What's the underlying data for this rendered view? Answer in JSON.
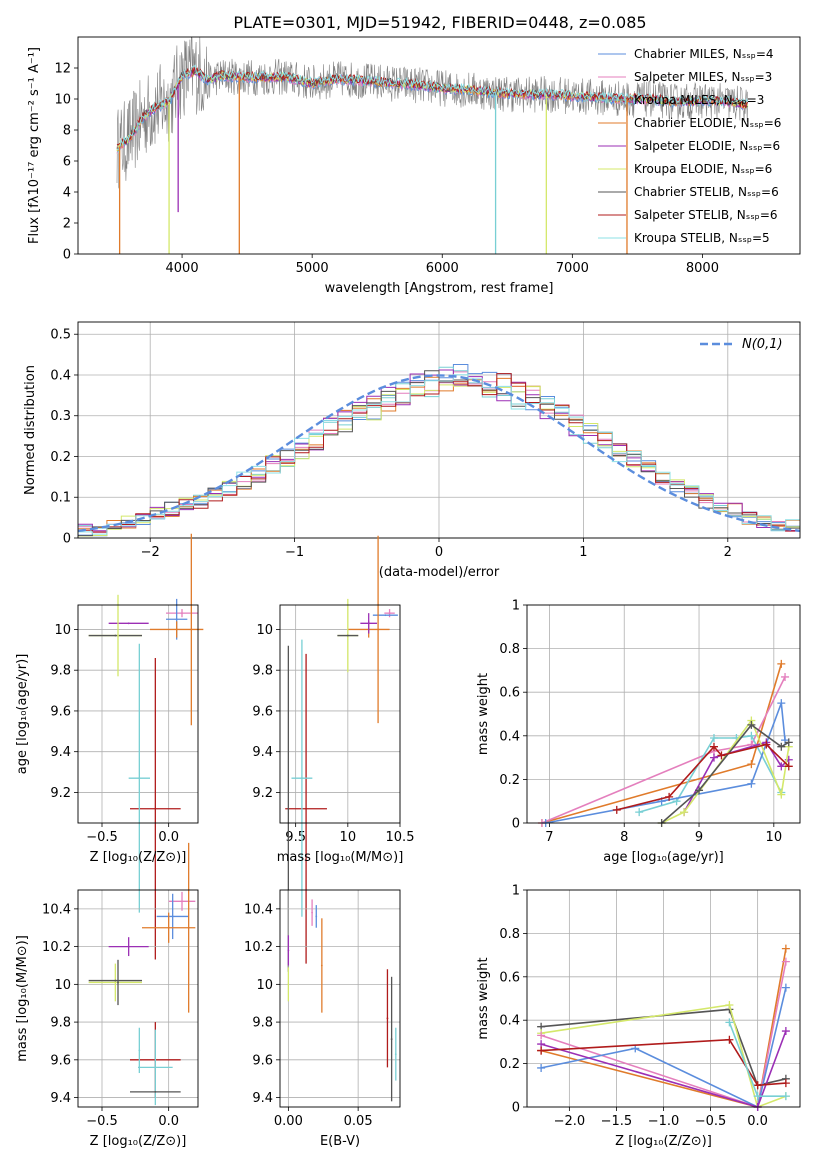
{
  "figure": {
    "title": "PLATE=0301, MJD=51942, FIBERID=0448, z=0.085"
  },
  "colors": {
    "chabrier_miles": "#5b8ddd",
    "salpeter_miles": "#e47fbd",
    "kroupa_miles": "#78cfd4",
    "chabrier_elodie": "#e07b2b",
    "salpeter_elodie": "#9b2fb5",
    "kroupa_elodie": "#d4e86a",
    "chabrier_stelib": "#555555",
    "salpeter_stelib": "#b01b1b",
    "kroupa_stelib": "#8ee0e6",
    "gauss": "#5b8ddd"
  },
  "chart_data": [
    {
      "id": "spectrum",
      "type": "line",
      "title": "PLATE=0301, MJD=51942, FIBERID=0448, z=0.085",
      "xlabel": "wavelength [Angstrom, rest frame]",
      "ylabel": "Flux [fλ10⁻¹⁷ erg cm⁻² s⁻¹ A⁻¹]",
      "xlim": [
        3200,
        8750
      ],
      "ylim": [
        0,
        14
      ],
      "xticks": [
        4000,
        5000,
        6000,
        7000,
        8000
      ],
      "yticks": [
        0,
        2,
        4,
        6,
        8,
        10,
        12
      ],
      "grid": false,
      "legend_position": "upper right",
      "continuum": {
        "x": [
          3500,
          3600,
          3700,
          3800,
          3900,
          4000,
          4100,
          4200,
          4300,
          4500,
          4800,
          5000,
          5200,
          5500,
          5800,
          6000,
          6200,
          6400,
          6600,
          6800,
          7000,
          7200,
          7400,
          7600,
          7800,
          8000,
          8200,
          8350
        ],
        "y": [
          6.8,
          7.5,
          8.8,
          9.5,
          9.8,
          11.5,
          11.8,
          11.2,
          11.5,
          11.4,
          11.4,
          11.0,
          11.3,
          11.1,
          10.9,
          10.7,
          10.6,
          10.4,
          10.3,
          10.3,
          10.2,
          10.1,
          10.0,
          10.0,
          9.8,
          9.9,
          9.8,
          9.6
        ]
      },
      "series": [
        {
          "name": "Chabrier MILES, Nₛₛₚ=4",
          "color": "#5b8ddd"
        },
        {
          "name": "Salpeter MILES, Nₛₛₚ=3",
          "color": "#e47fbd"
        },
        {
          "name": "Kroupa MILES, Nₛₛₚ=3",
          "color": "#78cfd4"
        },
        {
          "name": "Chabrier ELODIE, Nₛₛₚ=6",
          "color": "#e07b2b"
        },
        {
          "name": "Salpeter ELODIE, Nₛₛₚ=6",
          "color": "#9b2fb5"
        },
        {
          "name": "Kroupa ELODIE, Nₛₛₚ=6",
          "color": "#d4e86a"
        },
        {
          "name": "Chabrier STELIB, Nₛₛₚ=6",
          "color": "#555555"
        },
        {
          "name": "Salpeter STELIB, Nₛₛₚ=6",
          "color": "#b01b1b"
        },
        {
          "name": "Kroupa STELIB, Nₛₛₚ=5",
          "color": "#8ee0e6"
        }
      ],
      "spikes": [
        {
          "x": 3520,
          "y": 0,
          "color": "#e07b2b"
        },
        {
          "x": 3900,
          "y": 0,
          "color": "#d4e86a"
        },
        {
          "x": 4440,
          "y": 0,
          "color": "#e07b2b"
        },
        {
          "x": 6410,
          "y": 0,
          "color": "#78cfd4"
        },
        {
          "x": 6800,
          "y": 0,
          "color": "#d4e86a"
        },
        {
          "x": 7420,
          "y": 0,
          "color": "#e07b2b"
        },
        {
          "x": 3970,
          "y": 2.7,
          "color": "#9b2fb5"
        }
      ]
    },
    {
      "id": "residuals",
      "type": "histogram",
      "xlabel": "(data-model)/error",
      "ylabel": "Normed distribution",
      "xlim": [
        -2.5,
        2.5
      ],
      "ylim": [
        0,
        0.53
      ],
      "xticks": [
        -2,
        -1,
        0,
        1,
        2
      ],
      "yticks": [
        0.0,
        0.1,
        0.2,
        0.3,
        0.4,
        0.5
      ],
      "grid": true,
      "legend": "N(0,1)",
      "legend_position": "upper right",
      "bin_width": 0.1,
      "bin_start": -2.5,
      "envelope": [
        0.02,
        0.02,
        0.03,
        0.04,
        0.05,
        0.06,
        0.07,
        0.08,
        0.09,
        0.11,
        0.12,
        0.14,
        0.16,
        0.18,
        0.2,
        0.22,
        0.24,
        0.27,
        0.29,
        0.31,
        0.32,
        0.34,
        0.36,
        0.37,
        0.38,
        0.39,
        0.4,
        0.39,
        0.38,
        0.37,
        0.35,
        0.34,
        0.32,
        0.3,
        0.28,
        0.26,
        0.24,
        0.21,
        0.19,
        0.17,
        0.15,
        0.13,
        0.11,
        0.09,
        0.08,
        0.07,
        0.05,
        0.04,
        0.03,
        0.03
      ]
    },
    {
      "id": "age_vs_Z",
      "type": "errorbar",
      "xlabel": "Z [log₁₀(Z/Z⊙)]",
      "ylabel": "age  [log₁₀(age/yr)]",
      "xlim": [
        -0.68,
        0.22
      ],
      "ylim": [
        9.05,
        10.12
      ],
      "xticks": [
        -0.5,
        0.0
      ],
      "xticklabels": [
        "−0.5",
        "0.0"
      ],
      "yticks": [
        9.2,
        9.4,
        9.6,
        9.8,
        10.0
      ],
      "grid": true,
      "points": [
        {
          "x": 0.1,
          "y": 10.08,
          "xerr": 0.12,
          "yerr": 0.02,
          "color": "#e47fbd"
        },
        {
          "x": 0.06,
          "y": 10.05,
          "xerr": 0.08,
          "yerr": 0.1,
          "color": "#5b8ddd"
        },
        {
          "x": 0.06,
          "y": 10.0,
          "xerr": 0.2,
          "yerr": 0.04,
          "color": "#e07b2b"
        },
        {
          "x": -0.3,
          "y": 10.03,
          "xerr": 0.15,
          "yerr": 0.0,
          "color": "#9b2fb5"
        },
        {
          "x": -0.4,
          "y": 9.97,
          "xerr": 0.2,
          "yerr": 0.0,
          "color": "#d4e86a"
        },
        {
          "x": -0.4,
          "y": 9.97,
          "xerr": 0.2,
          "yerr": 0.0,
          "color": "#555555"
        },
        {
          "x": -0.1,
          "y": 9.12,
          "xerr": 0.19,
          "yerr": 0.74,
          "color": "#b01b1b"
        },
        {
          "x": -0.22,
          "y": 9.27,
          "xerr": 0.08,
          "yerr": 0.66,
          "color": "#78cfd4"
        },
        {
          "x": 0.17,
          "y": 10.0,
          "xerr": 0.0,
          "yerr": 0.47,
          "color": "#e07b2b"
        },
        {
          "x": -0.38,
          "y": 9.97,
          "xerr": 0.0,
          "yerr": 0.2,
          "color": "#d4e86a"
        }
      ]
    },
    {
      "id": "age_vs_mass",
      "type": "errorbar",
      "xlabel": "mass [log₁₀(M/M⊙)]",
      "ylabel": "",
      "xlim": [
        9.35,
        10.5
      ],
      "ylim": [
        9.05,
        10.12
      ],
      "xticks": [
        9.5,
        10.0,
        10.5
      ],
      "yticks": [
        9.2,
        9.4,
        9.6,
        9.8,
        10.0
      ],
      "grid": true,
      "points": [
        {
          "x": 10.4,
          "y": 10.08,
          "xerr": 0.05,
          "yerr": 0.02,
          "color": "#e47fbd"
        },
        {
          "x": 10.36,
          "y": 10.07,
          "xerr": 0.12,
          "yerr": 0.0,
          "color": "#5b8ddd"
        },
        {
          "x": 10.2,
          "y": 10.0,
          "xerr": 0.2,
          "yerr": 0.04,
          "color": "#e07b2b"
        },
        {
          "x": 10.2,
          "y": 10.03,
          "xerr": 0.08,
          "yerr": 0.05,
          "color": "#9b2fb5"
        },
        {
          "x": 10.0,
          "y": 9.97,
          "xerr": 0.1,
          "yerr": 0.18,
          "color": "#d4e86a"
        },
        {
          "x": 10.0,
          "y": 9.97,
          "xerr": 0.1,
          "yerr": 0.0,
          "color": "#555555"
        },
        {
          "x": 9.6,
          "y": 9.12,
          "xerr": 0.2,
          "yerr": 0.76,
          "color": "#b01b1b"
        },
        {
          "x": 9.56,
          "y": 9.27,
          "xerr": 0.1,
          "yerr": 0.68,
          "color": "#78cfd4"
        },
        {
          "x": 9.43,
          "y": 9.12,
          "xerr": 0.0,
          "yerr": 0.8,
          "color": "#555555"
        },
        {
          "x": 10.29,
          "y": 10.0,
          "xerr": 0.0,
          "yerr": 0.46,
          "color": "#e07b2b"
        }
      ]
    },
    {
      "id": "weight_vs_age",
      "type": "line",
      "xlabel": "age  [log₁₀(age/yr)]",
      "ylabel": "mass weight",
      "xlim": [
        6.7,
        10.35
      ],
      "ylim": [
        0,
        1.0
      ],
      "xticks": [
        7,
        8,
        9,
        10
      ],
      "yticks": [
        0.0,
        0.2,
        0.4,
        0.6,
        0.8,
        1.0
      ],
      "grid": true,
      "series": [
        {
          "color": "#e07b2b",
          "x": [
            6.9,
            9.7,
            10.1
          ],
          "y": [
            0.0,
            0.27,
            0.73
          ]
        },
        {
          "color": "#e47fbd",
          "x": [
            6.9,
            9.2,
            9.7,
            10.15
          ],
          "y": [
            0.0,
            0.33,
            0.36,
            0.67
          ]
        },
        {
          "color": "#78cfd4",
          "x": [
            8.2,
            8.7,
            9.2,
            9.5,
            9.7,
            10.1
          ],
          "y": [
            0.05,
            0.1,
            0.39,
            0.39,
            0.4,
            0.14
          ]
        },
        {
          "color": "#5b8ddd",
          "x": [
            6.95,
            8.5,
            9.7,
            10.1,
            10.15
          ],
          "y": [
            0.0,
            0.1,
            0.18,
            0.55,
            0.38
          ]
        },
        {
          "color": "#9b2fb5",
          "x": [
            8.8,
            9.2,
            9.9,
            10.1,
            10.2
          ],
          "y": [
            0.05,
            0.3,
            0.37,
            0.26,
            0.29
          ]
        },
        {
          "color": "#d4e86a",
          "x": [
            8.5,
            8.8,
            9.7,
            10.1,
            10.2
          ],
          "y": [
            0.0,
            0.05,
            0.47,
            0.13,
            0.35
          ]
        },
        {
          "color": "#555555",
          "x": [
            8.5,
            9.0,
            9.7,
            10.1,
            10.2
          ],
          "y": [
            0.0,
            0.15,
            0.45,
            0.35,
            0.37
          ]
        },
        {
          "color": "#b01b1b",
          "x": [
            7.9,
            8.6,
            9.2,
            9.3,
            9.9,
            10.2
          ],
          "y": [
            0.06,
            0.12,
            0.35,
            0.31,
            0.36,
            0.26
          ]
        }
      ]
    },
    {
      "id": "mass_vs_Z",
      "type": "errorbar",
      "xlabel": "Z [log₁₀(Z/Z⊙)]",
      "ylabel": "mass [log₁₀(M/M⊙)]",
      "xlim": [
        -0.68,
        0.22
      ],
      "ylim": [
        9.35,
        10.5
      ],
      "xticks": [
        -0.5,
        0.0
      ],
      "xticklabels": [
        "−0.5",
        "0.0"
      ],
      "yticks": [
        9.4,
        9.6,
        9.8,
        10.0,
        10.2,
        10.4
      ],
      "grid": true,
      "points": [
        {
          "x": 0.1,
          "y": 10.44,
          "xerr": 0.1,
          "yerr": 0.05,
          "color": "#e47fbd"
        },
        {
          "x": 0.03,
          "y": 10.36,
          "xerr": 0.12,
          "yerr": 0.12,
          "color": "#5b8ddd"
        },
        {
          "x": 0.0,
          "y": 10.3,
          "xerr": 0.2,
          "yerr": 0.08,
          "color": "#e07b2b"
        },
        {
          "x": -0.3,
          "y": 10.2,
          "xerr": 0.15,
          "yerr": 0.05,
          "color": "#9b2fb5"
        },
        {
          "x": -0.4,
          "y": 10.01,
          "xerr": 0.2,
          "yerr": 0.1,
          "color": "#d4e86a"
        },
        {
          "x": -0.4,
          "y": 10.02,
          "xerr": 0.2,
          "yerr": 0.0,
          "color": "#555555"
        },
        {
          "x": -0.1,
          "y": 9.6,
          "xerr": 0.19,
          "yerr": 0.2,
          "color": "#b01b1b"
        },
        {
          "x": -0.1,
          "y": 9.56,
          "xerr": 0.13,
          "yerr": 0.2,
          "color": "#78cfd4"
        },
        {
          "x": -0.1,
          "y": 9.43,
          "xerr": 0.19,
          "yerr": 0.0,
          "color": "#555555"
        },
        {
          "x": 0.15,
          "y": 10.3,
          "xerr": 0.0,
          "yerr": 0.45,
          "color": "#e07b2b"
        },
        {
          "x": -0.38,
          "y": 10.01,
          "xerr": 0.0,
          "yerr": 0.12,
          "color": "#555555"
        },
        {
          "x": -0.22,
          "y": 9.65,
          "xerr": 0.0,
          "yerr": 0.12,
          "color": "#78cfd4"
        }
      ]
    },
    {
      "id": "mass_vs_ebv",
      "type": "errorbar",
      "xlabel": "E(B-V)",
      "ylabel": "",
      "xlim": [
        -0.006,
        0.08
      ],
      "ylim": [
        9.35,
        10.5
      ],
      "xticks": [
        0.0,
        0.05
      ],
      "xticklabels": [
        "0.00",
        "0.05"
      ],
      "yticks": [
        9.4,
        9.6,
        9.8,
        10.0,
        10.2,
        10.4
      ],
      "grid": true,
      "points": [
        {
          "x": 0.017,
          "y": 10.38,
          "xerr": 0.0,
          "yerr": 0.07,
          "color": "#e47fbd"
        },
        {
          "x": 0.02,
          "y": 10.36,
          "xerr": 0.0,
          "yerr": 0.06,
          "color": "#5b8ddd"
        },
        {
          "x": 0.024,
          "y": 10.1,
          "xerr": 0.0,
          "yerr": 0.25,
          "color": "#e07b2b"
        },
        {
          "x": 0.0,
          "y": 10.18,
          "xerr": 0.0,
          "yerr": 0.08,
          "color": "#9b2fb5"
        },
        {
          "x": 0.0,
          "y": 10.0,
          "xerr": 0.0,
          "yerr": 0.09,
          "color": "#d4e86a"
        },
        {
          "x": 0.071,
          "y": 9.82,
          "xerr": 0.0,
          "yerr": 0.26,
          "color": "#b01b1b"
        },
        {
          "x": 0.074,
          "y": 9.71,
          "xerr": 0.0,
          "yerr": 0.33,
          "color": "#555555"
        },
        {
          "x": 0.077,
          "y": 9.63,
          "xerr": 0.0,
          "yerr": 0.14,
          "color": "#78cfd4"
        }
      ]
    },
    {
      "id": "weight_vs_Z",
      "type": "line",
      "xlabel": "Z [log₁₀(Z/Z⊙)]",
      "ylabel": "mass weight",
      "xlim": [
        -2.45,
        0.45
      ],
      "ylim": [
        0,
        1.0
      ],
      "xticks": [
        -2.0,
        -1.5,
        -1.0,
        -0.5,
        0.0
      ],
      "xticklabels": [
        "−2.0",
        "−1.5",
        "−1.0",
        "−0.5",
        "0.0"
      ],
      "yticks": [
        0.0,
        0.2,
        0.4,
        0.6,
        0.8,
        1.0
      ],
      "grid": true,
      "series": [
        {
          "color": "#555555",
          "x": [
            -2.3,
            -0.3,
            0.0,
            0.3
          ],
          "y": [
            0.37,
            0.45,
            0.1,
            0.13
          ]
        },
        {
          "color": "#d4e86a",
          "x": [
            -2.3,
            -0.3,
            0.0,
            0.3
          ],
          "y": [
            0.34,
            0.47,
            0.0,
            0.05
          ]
        },
        {
          "color": "#e07b2b",
          "x": [
            -2.3,
            0.0,
            0.3
          ],
          "y": [
            0.26,
            0.0,
            0.73
          ]
        },
        {
          "color": "#e47fbd",
          "x": [
            -2.3,
            0.0,
            0.3
          ],
          "y": [
            0.33,
            0.0,
            0.67
          ]
        },
        {
          "color": "#5b8ddd",
          "x": [
            -2.3,
            -1.3,
            0.0,
            0.3
          ],
          "y": [
            0.18,
            0.27,
            0.0,
            0.55
          ]
        },
        {
          "color": "#9b2fb5",
          "x": [
            -2.3,
            0.0,
            0.3
          ],
          "y": [
            0.29,
            0.0,
            0.35
          ]
        },
        {
          "color": "#b01b1b",
          "x": [
            -2.3,
            -0.3,
            0.0,
            0.3
          ],
          "y": [
            0.26,
            0.31,
            0.1,
            0.11
          ]
        },
        {
          "color": "#78cfd4",
          "x": [
            -0.3,
            0.0,
            0.3
          ],
          "y": [
            0.39,
            0.05,
            0.05
          ]
        }
      ]
    }
  ]
}
